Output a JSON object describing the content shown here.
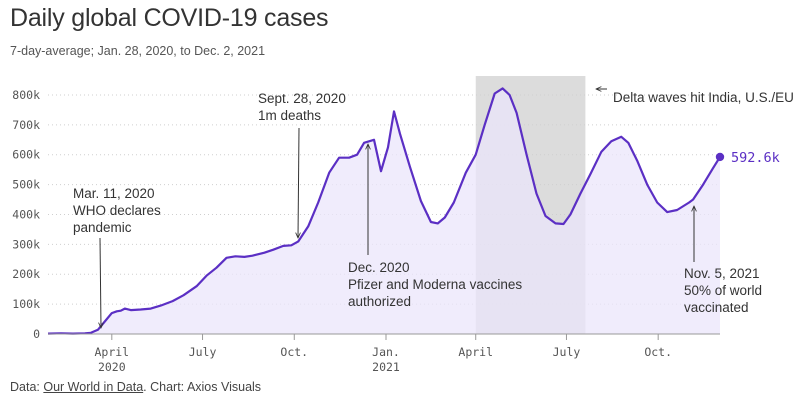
{
  "title": "Daily global COVID-19 cases",
  "subtitle": "7-day-average; Jan. 28, 2020, to Dec. 2, 2021",
  "source": {
    "prefix": "Data: ",
    "link_text": "Our World in Data",
    "suffix": ". Chart: Axios Visuals"
  },
  "colors": {
    "line": "#5b2fc4",
    "fill": "#ebe5fb",
    "shade": "#dcdcdc",
    "grid": "#cfcfcf",
    "axis": "#999999",
    "annotation": "#333333"
  },
  "chart_data": {
    "type": "area",
    "title": "Daily global COVID-19 cases",
    "ylabel": "",
    "xlabel": "",
    "ylim": [
      0,
      830000
    ],
    "xlim": [
      "2020-01-28",
      "2021-12-02"
    ],
    "grid": true,
    "y_ticks": [
      {
        "value": 0,
        "label": "0"
      },
      {
        "value": 100000,
        "label": "100k"
      },
      {
        "value": 200000,
        "label": "200k"
      },
      {
        "value": 300000,
        "label": "300k"
      },
      {
        "value": 400000,
        "label": "400k"
      },
      {
        "value": 500000,
        "label": "500k"
      },
      {
        "value": 600000,
        "label": "600k"
      },
      {
        "value": 700000,
        "label": "700k"
      },
      {
        "value": 800000,
        "label": "800k"
      }
    ],
    "x_ticks": [
      {
        "date": "2020-04-01",
        "label": "April",
        "label2": "2020"
      },
      {
        "date": "2020-07-01",
        "label": "July",
        "label2": ""
      },
      {
        "date": "2020-10-01",
        "label": "Oct.",
        "label2": ""
      },
      {
        "date": "2021-01-01",
        "label": "Jan.",
        "label2": "2021"
      },
      {
        "date": "2021-04-01",
        "label": "April",
        "label2": ""
      },
      {
        "date": "2021-07-01",
        "label": "July",
        "label2": ""
      },
      {
        "date": "2021-10-01",
        "label": "Oct.",
        "label2": ""
      }
    ],
    "shaded_region": {
      "start": "2021-04-01",
      "end": "2021-07-20"
    },
    "series": [
      {
        "values": [
          [
            "2020-01-28",
            1500
          ],
          [
            "2020-02-10",
            2500
          ],
          [
            "2020-02-22",
            1500
          ],
          [
            "2020-03-05",
            2500
          ],
          [
            "2020-03-11",
            4000
          ],
          [
            "2020-03-18",
            14000
          ],
          [
            "2020-03-25",
            42000
          ],
          [
            "2020-04-01",
            70000
          ],
          [
            "2020-04-06",
            76000
          ],
          [
            "2020-04-10",
            78000
          ],
          [
            "2020-04-14",
            85000
          ],
          [
            "2020-04-20",
            80000
          ],
          [
            "2020-04-30",
            82000
          ],
          [
            "2020-05-10",
            85000
          ],
          [
            "2020-05-20",
            95000
          ],
          [
            "2020-06-01",
            110000
          ],
          [
            "2020-06-12",
            130000
          ],
          [
            "2020-06-25",
            160000
          ],
          [
            "2020-07-05",
            195000
          ],
          [
            "2020-07-15",
            222000
          ],
          [
            "2020-07-25",
            255000
          ],
          [
            "2020-08-03",
            260000
          ],
          [
            "2020-08-12",
            258000
          ],
          [
            "2020-08-20",
            262000
          ],
          [
            "2020-09-01",
            272000
          ],
          [
            "2020-09-10",
            282000
          ],
          [
            "2020-09-20",
            295000
          ],
          [
            "2020-09-28",
            297000
          ],
          [
            "2020-10-05",
            310000
          ],
          [
            "2020-10-15",
            360000
          ],
          [
            "2020-10-25",
            440000
          ],
          [
            "2020-11-05",
            540000
          ],
          [
            "2020-11-15",
            590000
          ],
          [
            "2020-11-25",
            590000
          ],
          [
            "2020-12-03",
            600000
          ],
          [
            "2020-12-10",
            640000
          ],
          [
            "2020-12-20",
            650000
          ],
          [
            "2020-12-27",
            545000
          ],
          [
            "2021-01-03",
            625000
          ],
          [
            "2021-01-09",
            745000
          ],
          [
            "2021-01-15",
            670000
          ],
          [
            "2021-01-25",
            560000
          ],
          [
            "2021-02-05",
            445000
          ],
          [
            "2021-02-15",
            375000
          ],
          [
            "2021-02-22",
            370000
          ],
          [
            "2021-03-01",
            390000
          ],
          [
            "2021-03-10",
            440000
          ],
          [
            "2021-03-22",
            540000
          ],
          [
            "2021-04-01",
            600000
          ],
          [
            "2021-04-10",
            700000
          ],
          [
            "2021-04-20",
            805000
          ],
          [
            "2021-04-28",
            822000
          ],
          [
            "2021-05-05",
            800000
          ],
          [
            "2021-05-12",
            740000
          ],
          [
            "2021-05-22",
            600000
          ],
          [
            "2021-06-01",
            470000
          ],
          [
            "2021-06-10",
            395000
          ],
          [
            "2021-06-20",
            370000
          ],
          [
            "2021-06-28",
            368000
          ],
          [
            "2021-07-05",
            400000
          ],
          [
            "2021-07-15",
            470000
          ],
          [
            "2021-07-25",
            535000
          ],
          [
            "2021-08-05",
            610000
          ],
          [
            "2021-08-15",
            645000
          ],
          [
            "2021-08-25",
            660000
          ],
          [
            "2021-09-01",
            640000
          ],
          [
            "2021-09-10",
            580000
          ],
          [
            "2021-09-20",
            500000
          ],
          [
            "2021-09-30",
            440000
          ],
          [
            "2021-10-10",
            408000
          ],
          [
            "2021-10-20",
            415000
          ],
          [
            "2021-11-01",
            440000
          ],
          [
            "2021-11-05",
            450000
          ],
          [
            "2021-11-15",
            500000
          ],
          [
            "2021-11-25",
            555000
          ],
          [
            "2021-12-02",
            592600
          ]
        ]
      }
    ],
    "last_value": {
      "date": "2021-12-02",
      "value": 592600,
      "label": "592.6k"
    },
    "annotations": [
      {
        "lines": [
          "Mar. 11, 2020",
          "WHO declares",
          "pandemic"
        ],
        "date": "2020-03-11",
        "value": 4000
      },
      {
        "lines": [
          "Sept. 28, 2020",
          "1m deaths"
        ],
        "date": "2020-09-28",
        "value": 297000
      },
      {
        "lines": [
          "Dec. 2020",
          "Pfizer and Moderna vaccines",
          "authorized"
        ],
        "date": "2020-12-14",
        "value": 640000
      },
      {
        "lines": [
          "Delta waves hit India, U.S./EU"
        ],
        "date": "2021-07-20",
        "value": 800000
      },
      {
        "lines": [
          "Nov. 5, 2021",
          "50% of world",
          "vaccinated"
        ],
        "date": "2021-11-05",
        "value": 450000
      }
    ]
  }
}
